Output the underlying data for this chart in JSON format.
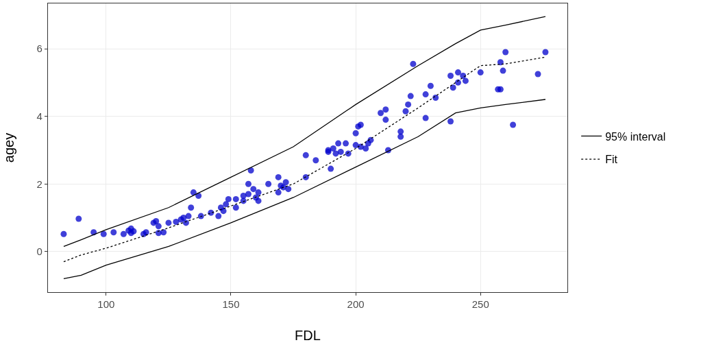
{
  "chart_data": {
    "type": "scatter",
    "xlabel": "FDL",
    "ylabel": "agey",
    "xlim": [
      76.7,
      284.8
    ],
    "ylim": [
      -1.2,
      7.34
    ],
    "xticks": [
      100,
      150,
      200,
      250
    ],
    "yticks": [
      0,
      2,
      4,
      6
    ],
    "grid": true,
    "legend": "right",
    "series": [
      {
        "marker": "circle",
        "color": "#0000cc",
        "x": [
          83,
          89,
          95,
          99,
          103,
          107,
          109,
          110,
          110,
          111,
          115,
          116,
          119,
          120,
          121,
          121,
          123,
          125,
          128,
          130,
          131,
          132,
          133,
          134,
          135,
          137,
          138,
          142,
          145,
          146,
          147,
          148,
          149,
          152,
          152,
          155,
          155,
          157,
          157,
          158,
          159,
          160,
          161,
          161,
          165,
          169,
          169,
          170,
          171,
          172,
          173,
          180,
          180,
          184,
          189,
          189,
          190,
          191,
          192,
          193,
          194,
          196,
          197,
          200,
          200,
          201,
          202,
          202,
          204,
          205,
          206,
          210,
          212,
          212,
          213,
          218,
          218,
          220,
          221,
          222,
          223,
          228,
          228,
          230,
          232,
          238,
          238,
          239,
          241,
          241,
          243,
          244,
          250,
          257,
          258,
          258,
          259,
          260,
          263,
          273,
          276
        ],
        "values": [
          0.52,
          0.97,
          0.57,
          0.52,
          0.57,
          0.52,
          0.62,
          0.55,
          0.68,
          0.6,
          0.52,
          0.57,
          0.85,
          0.9,
          0.55,
          0.75,
          0.57,
          0.85,
          0.88,
          0.95,
          1.0,
          0.85,
          1.05,
          1.3,
          1.75,
          1.65,
          1.05,
          1.15,
          1.05,
          1.3,
          1.2,
          1.4,
          1.55,
          1.55,
          1.3,
          1.65,
          1.5,
          2.0,
          1.7,
          2.4,
          1.85,
          1.6,
          1.5,
          1.75,
          2.0,
          1.75,
          2.2,
          1.95,
          1.9,
          2.05,
          1.85,
          2.85,
          2.2,
          2.7,
          2.95,
          3.0,
          2.45,
          3.05,
          2.9,
          3.2,
          2.95,
          3.2,
          2.9,
          3.5,
          3.15,
          3.7,
          3.1,
          3.75,
          3.05,
          3.2,
          3.3,
          4.1,
          4.2,
          3.9,
          3.0,
          3.4,
          3.55,
          4.15,
          4.35,
          4.6,
          5.55,
          4.65,
          3.95,
          4.9,
          4.55,
          3.85,
          5.2,
          4.85,
          5.3,
          5.0,
          5.2,
          5.05,
          5.3,
          4.8,
          4.8,
          5.6,
          5.35,
          5.9,
          3.75,
          5.25,
          5.9
        ]
      },
      {
        "type": "line",
        "marker": "none",
        "name": "95% interval",
        "color": "#000000",
        "line_style": "solid",
        "x": [
          83,
          90,
          100,
          125,
          150,
          175,
          200,
          225,
          240,
          250,
          260,
          276
        ],
        "values": [
          0.15,
          0.35,
          0.65,
          1.3,
          2.2,
          3.1,
          4.35,
          5.5,
          6.15,
          6.55,
          6.7,
          6.95
        ]
      },
      {
        "type": "line",
        "marker": "none",
        "color": "#000000",
        "line_style": "solid",
        "x": [
          83,
          90,
          100,
          125,
          150,
          175,
          200,
          225,
          240,
          250,
          260,
          276
        ],
        "values": [
          -0.8,
          -0.7,
          -0.4,
          0.15,
          0.85,
          1.6,
          2.5,
          3.4,
          4.1,
          4.25,
          4.35,
          4.5
        ]
      },
      {
        "type": "line",
        "marker": "none",
        "name": "Fit",
        "color": "#000000",
        "line_style": "dotted",
        "x": [
          83,
          90,
          100,
          125,
          150,
          175,
          200,
          225,
          240,
          250,
          260,
          276
        ],
        "values": [
          -0.3,
          -0.1,
          0.1,
          0.7,
          1.35,
          2.0,
          3.05,
          4.25,
          5.0,
          5.5,
          5.55,
          5.75
        ]
      }
    ]
  }
}
